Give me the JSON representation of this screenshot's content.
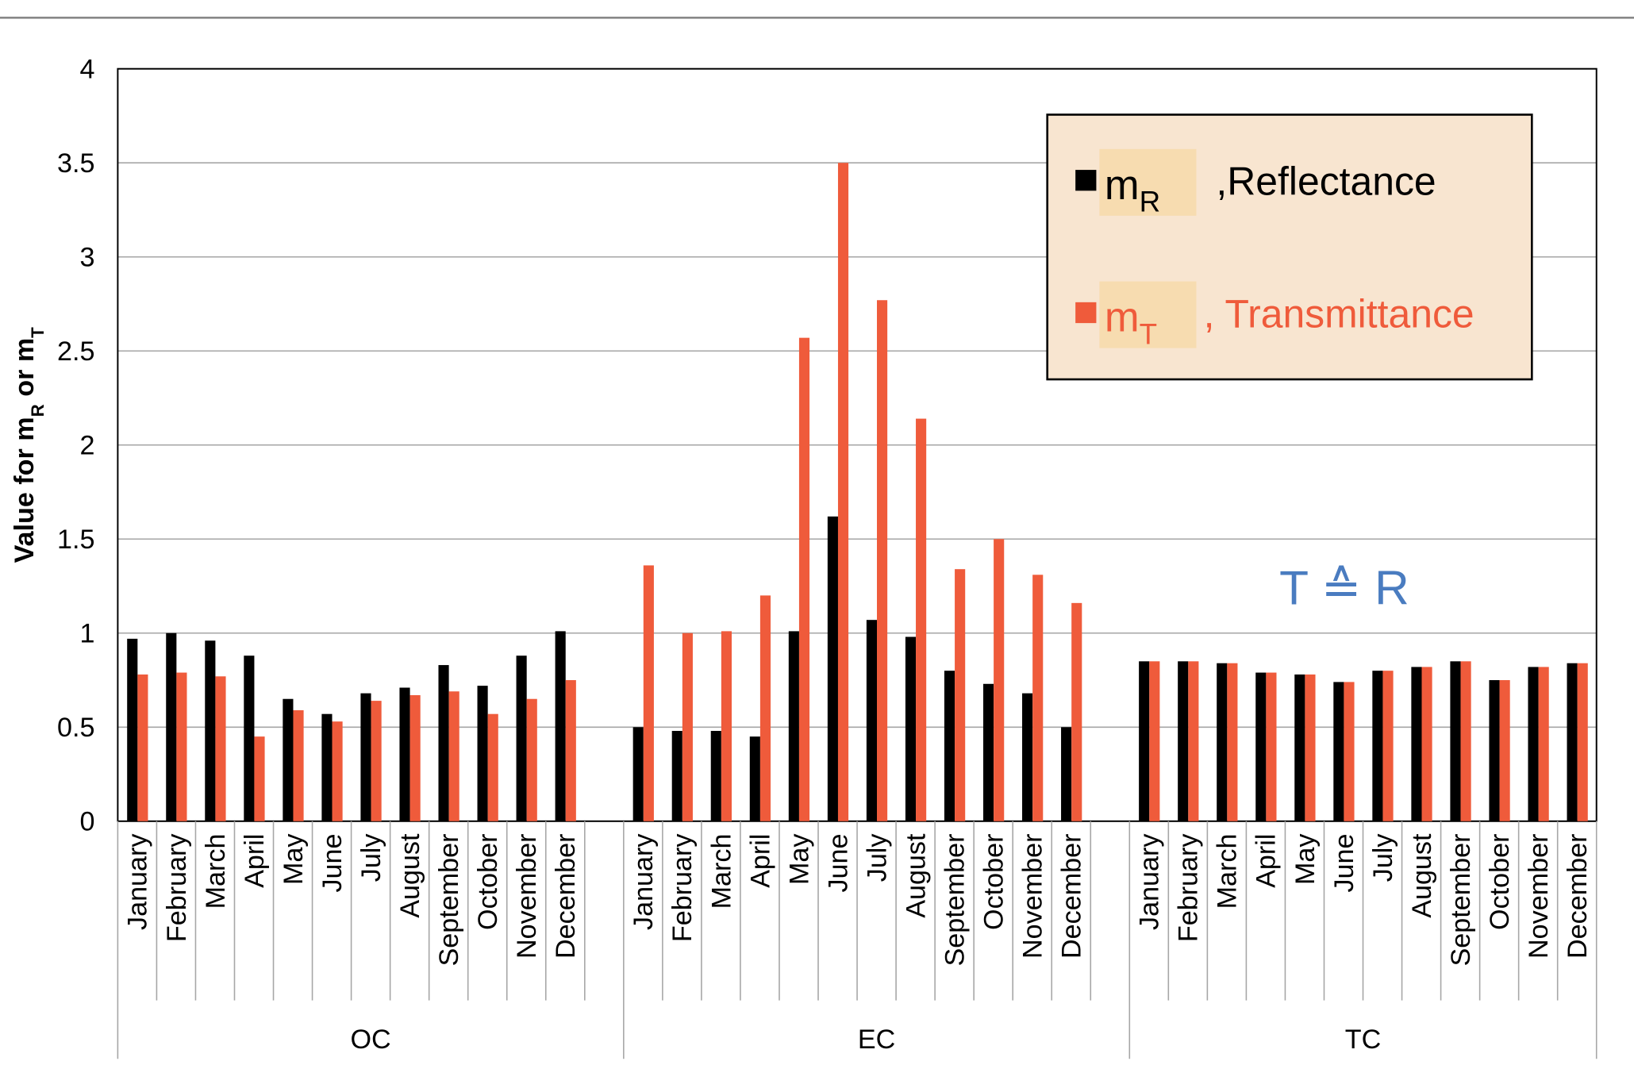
{
  "chart_data": {
    "type": "bar",
    "ylabel": [
      "Value for m",
      "R",
      " or m",
      "T"
    ],
    "categories": [
      "January",
      "February",
      "March",
      "April",
      "May",
      "June",
      "July",
      "August",
      "September",
      "October",
      "November",
      "December",
      null,
      "January",
      "February",
      "March",
      "April",
      "May",
      "June",
      "July",
      "August",
      "September",
      "October",
      "November",
      "December",
      null,
      "January",
      "February",
      "March",
      "April",
      "May",
      "June",
      "July",
      "August",
      "September",
      "October",
      "November",
      "December"
    ],
    "groups": [
      "OC",
      "EC",
      "TC"
    ],
    "series": [
      {
        "symbol": "m",
        "subscript": "R",
        "name": ",Reflectance",
        "color": "#000000",
        "values": [
          0.97,
          1.0,
          0.96,
          0.88,
          0.65,
          0.57,
          0.68,
          0.71,
          0.83,
          0.72,
          0.88,
          1.01,
          null,
          0.5,
          0.48,
          0.48,
          0.45,
          1.01,
          1.62,
          1.07,
          0.98,
          0.8,
          0.73,
          0.68,
          0.5,
          null,
          0.85,
          0.85,
          0.84,
          0.79,
          0.78,
          0.74,
          0.8,
          0.82,
          0.85,
          0.75,
          0.82,
          0.84
        ]
      },
      {
        "symbol": "m",
        "subscript": "T",
        "name": ", Transmittance",
        "color": "#ef5b3b",
        "values": [
          0.78,
          0.79,
          0.77,
          0.45,
          0.59,
          0.53,
          0.64,
          0.67,
          0.69,
          0.57,
          0.65,
          0.75,
          null,
          1.36,
          1.0,
          1.01,
          1.2,
          2.57,
          3.5,
          2.77,
          2.14,
          1.34,
          1.5,
          1.31,
          1.16,
          null,
          0.85,
          0.85,
          0.84,
          0.79,
          0.78,
          0.74,
          0.8,
          0.82,
          0.85,
          0.75,
          0.82,
          0.84
        ]
      }
    ],
    "annotation": {
      "text": "T ≙ R",
      "color": "#4a7cc0"
    },
    "ylim": [
      0,
      4
    ],
    "yticks": [
      0,
      0.5,
      1,
      1.5,
      2,
      2.5,
      3,
      3.5,
      4
    ],
    "grid": true
  }
}
